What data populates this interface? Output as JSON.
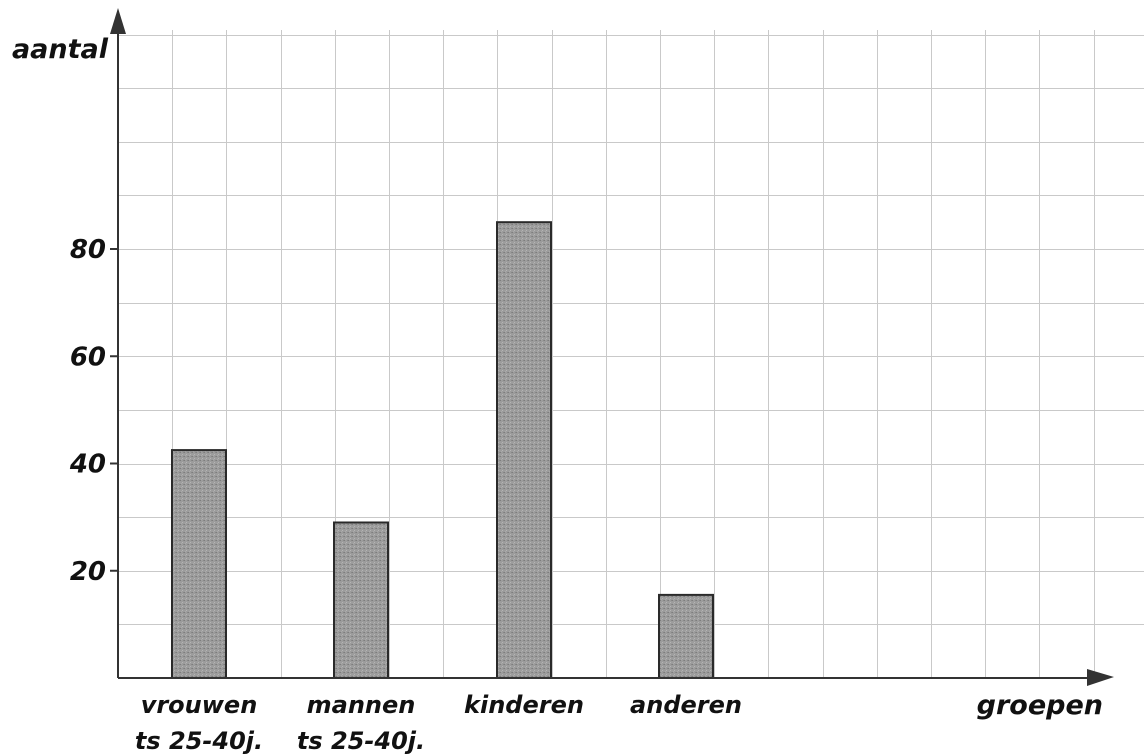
{
  "chart_data": {
    "type": "bar",
    "ylabel": "aantal",
    "xlabel": "groepen",
    "categories": [
      [
        "vrouwen",
        "ts 25-40j."
      ],
      [
        "mannen",
        "ts 25-40j."
      ],
      [
        "kinderen"
      ],
      [
        "anderen"
      ]
    ],
    "values": [
      42.5,
      29,
      85,
      15.5
    ],
    "yticks": [
      "20",
      "40",
      "60",
      "80"
    ],
    "ylim": [
      0,
      120
    ],
    "grid": true,
    "colors": {
      "bar_fill": "#9a9a9a",
      "bar_stroke": "#2a2a2a",
      "grid": "#c9c9c9",
      "axis": "#333333"
    }
  }
}
